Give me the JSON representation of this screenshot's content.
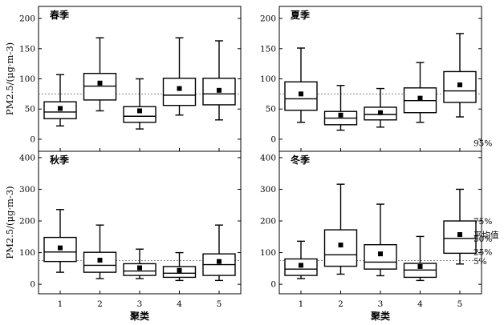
{
  "chart_data": [
    {
      "type": "boxplot",
      "title": "春季",
      "xlabel": "",
      "ylabel": "PM2.5/(μg·m-3)",
      "ylim": [
        -20,
        220
      ],
      "yticks": [
        0,
        50,
        100,
        150,
        200
      ],
      "categories": [
        "1",
        "2",
        "3",
        "4",
        "5"
      ],
      "reference_line": 75,
      "boxes": [
        {
          "p5": 22,
          "p25": 34,
          "p50": 45,
          "p75": 62,
          "p95": 107,
          "mean": 51
        },
        {
          "p5": 47,
          "p25": 65,
          "p50": 88,
          "p75": 109,
          "p95": 168,
          "mean": 93
        },
        {
          "p5": 17,
          "p25": 28,
          "p50": 38,
          "p75": 54,
          "p95": 100,
          "mean": 47
        },
        {
          "p5": 40,
          "p25": 56,
          "p50": 73,
          "p75": 101,
          "p95": 168,
          "mean": 84
        },
        {
          "p5": 32,
          "p25": 57,
          "p50": 75,
          "p75": 101,
          "p95": 163,
          "mean": 81
        }
      ]
    },
    {
      "type": "boxplot",
      "title": "夏季",
      "xlabel": "",
      "ylabel": "",
      "ylim": [
        -20,
        220
      ],
      "yticks": [
        0,
        50,
        100,
        150,
        200
      ],
      "categories": [
        "1",
        "2",
        "3",
        "4",
        "5"
      ],
      "reference_line": 75,
      "boxes": [
        {
          "p5": 28,
          "p25": 48,
          "p50": 67,
          "p75": 95,
          "p95": 151,
          "mean": 75
        },
        {
          "p5": 15,
          "p25": 24,
          "p50": 35,
          "p75": 46,
          "p95": 89,
          "mean": 40
        },
        {
          "p5": 20,
          "p25": 32,
          "p50": 41,
          "p75": 53,
          "p95": 84,
          "mean": 44
        },
        {
          "p5": 28,
          "p25": 44,
          "p50": 64,
          "p75": 85,
          "p95": 127,
          "mean": 68
        },
        {
          "p5": 37,
          "p25": 61,
          "p50": 80,
          "p75": 112,
          "p95": 175,
          "mean": 90
        }
      ]
    },
    {
      "type": "boxplot",
      "title": "秋季",
      "xlabel": "聚类",
      "ylabel": "PM2.5/(μg·m-3)",
      "ylim": [
        -30,
        420
      ],
      "yticks": [
        0,
        100,
        200,
        300,
        400
      ],
      "categories": [
        "1",
        "2",
        "3",
        "4",
        "5"
      ],
      "reference_line": 75,
      "boxes": [
        {
          "p5": 38,
          "p25": 72,
          "p50": 102,
          "p75": 148,
          "p95": 236,
          "mean": 115
        },
        {
          "p5": 18,
          "p25": 38,
          "p50": 60,
          "p75": 101,
          "p95": 187,
          "mean": 76
        },
        {
          "p5": 18,
          "p25": 28,
          "p50": 42,
          "p75": 65,
          "p95": 111,
          "mean": 52
        },
        {
          "p5": 12,
          "p25": 22,
          "p50": 35,
          "p75": 56,
          "p95": 100,
          "mean": 44
        },
        {
          "p5": 12,
          "p25": 28,
          "p50": 62,
          "p75": 96,
          "p95": 187,
          "mean": 72
        }
      ]
    },
    {
      "type": "boxplot",
      "title": "冬季",
      "xlabel": "聚类",
      "ylabel": "",
      "ylim": [
        -30,
        420
      ],
      "yticks": [
        0,
        100,
        200,
        300,
        400
      ],
      "categories": [
        "1",
        "2",
        "3",
        "4",
        "5"
      ],
      "reference_line": 75,
      "boxes": [
        {
          "p5": 18,
          "p25": 28,
          "p50": 48,
          "p75": 80,
          "p95": 136,
          "mean": 60
        },
        {
          "p5": 32,
          "p25": 57,
          "p50": 93,
          "p75": 172,
          "p95": 316,
          "mean": 124
        },
        {
          "p5": 27,
          "p25": 48,
          "p50": 70,
          "p75": 125,
          "p95": 253,
          "mean": 96
        },
        {
          "p5": 12,
          "p25": 22,
          "p50": 45,
          "p75": 66,
          "p95": 151,
          "mean": 56
        },
        {
          "p5": 64,
          "p25": 98,
          "p50": 145,
          "p75": 200,
          "p95": 300,
          "mean": 157
        }
      ],
      "legend": {
        "position": "right",
        "items": [
          "95%",
          "75%",
          "平均值",
          "50%",
          "25%",
          "5%"
        ]
      }
    }
  ]
}
